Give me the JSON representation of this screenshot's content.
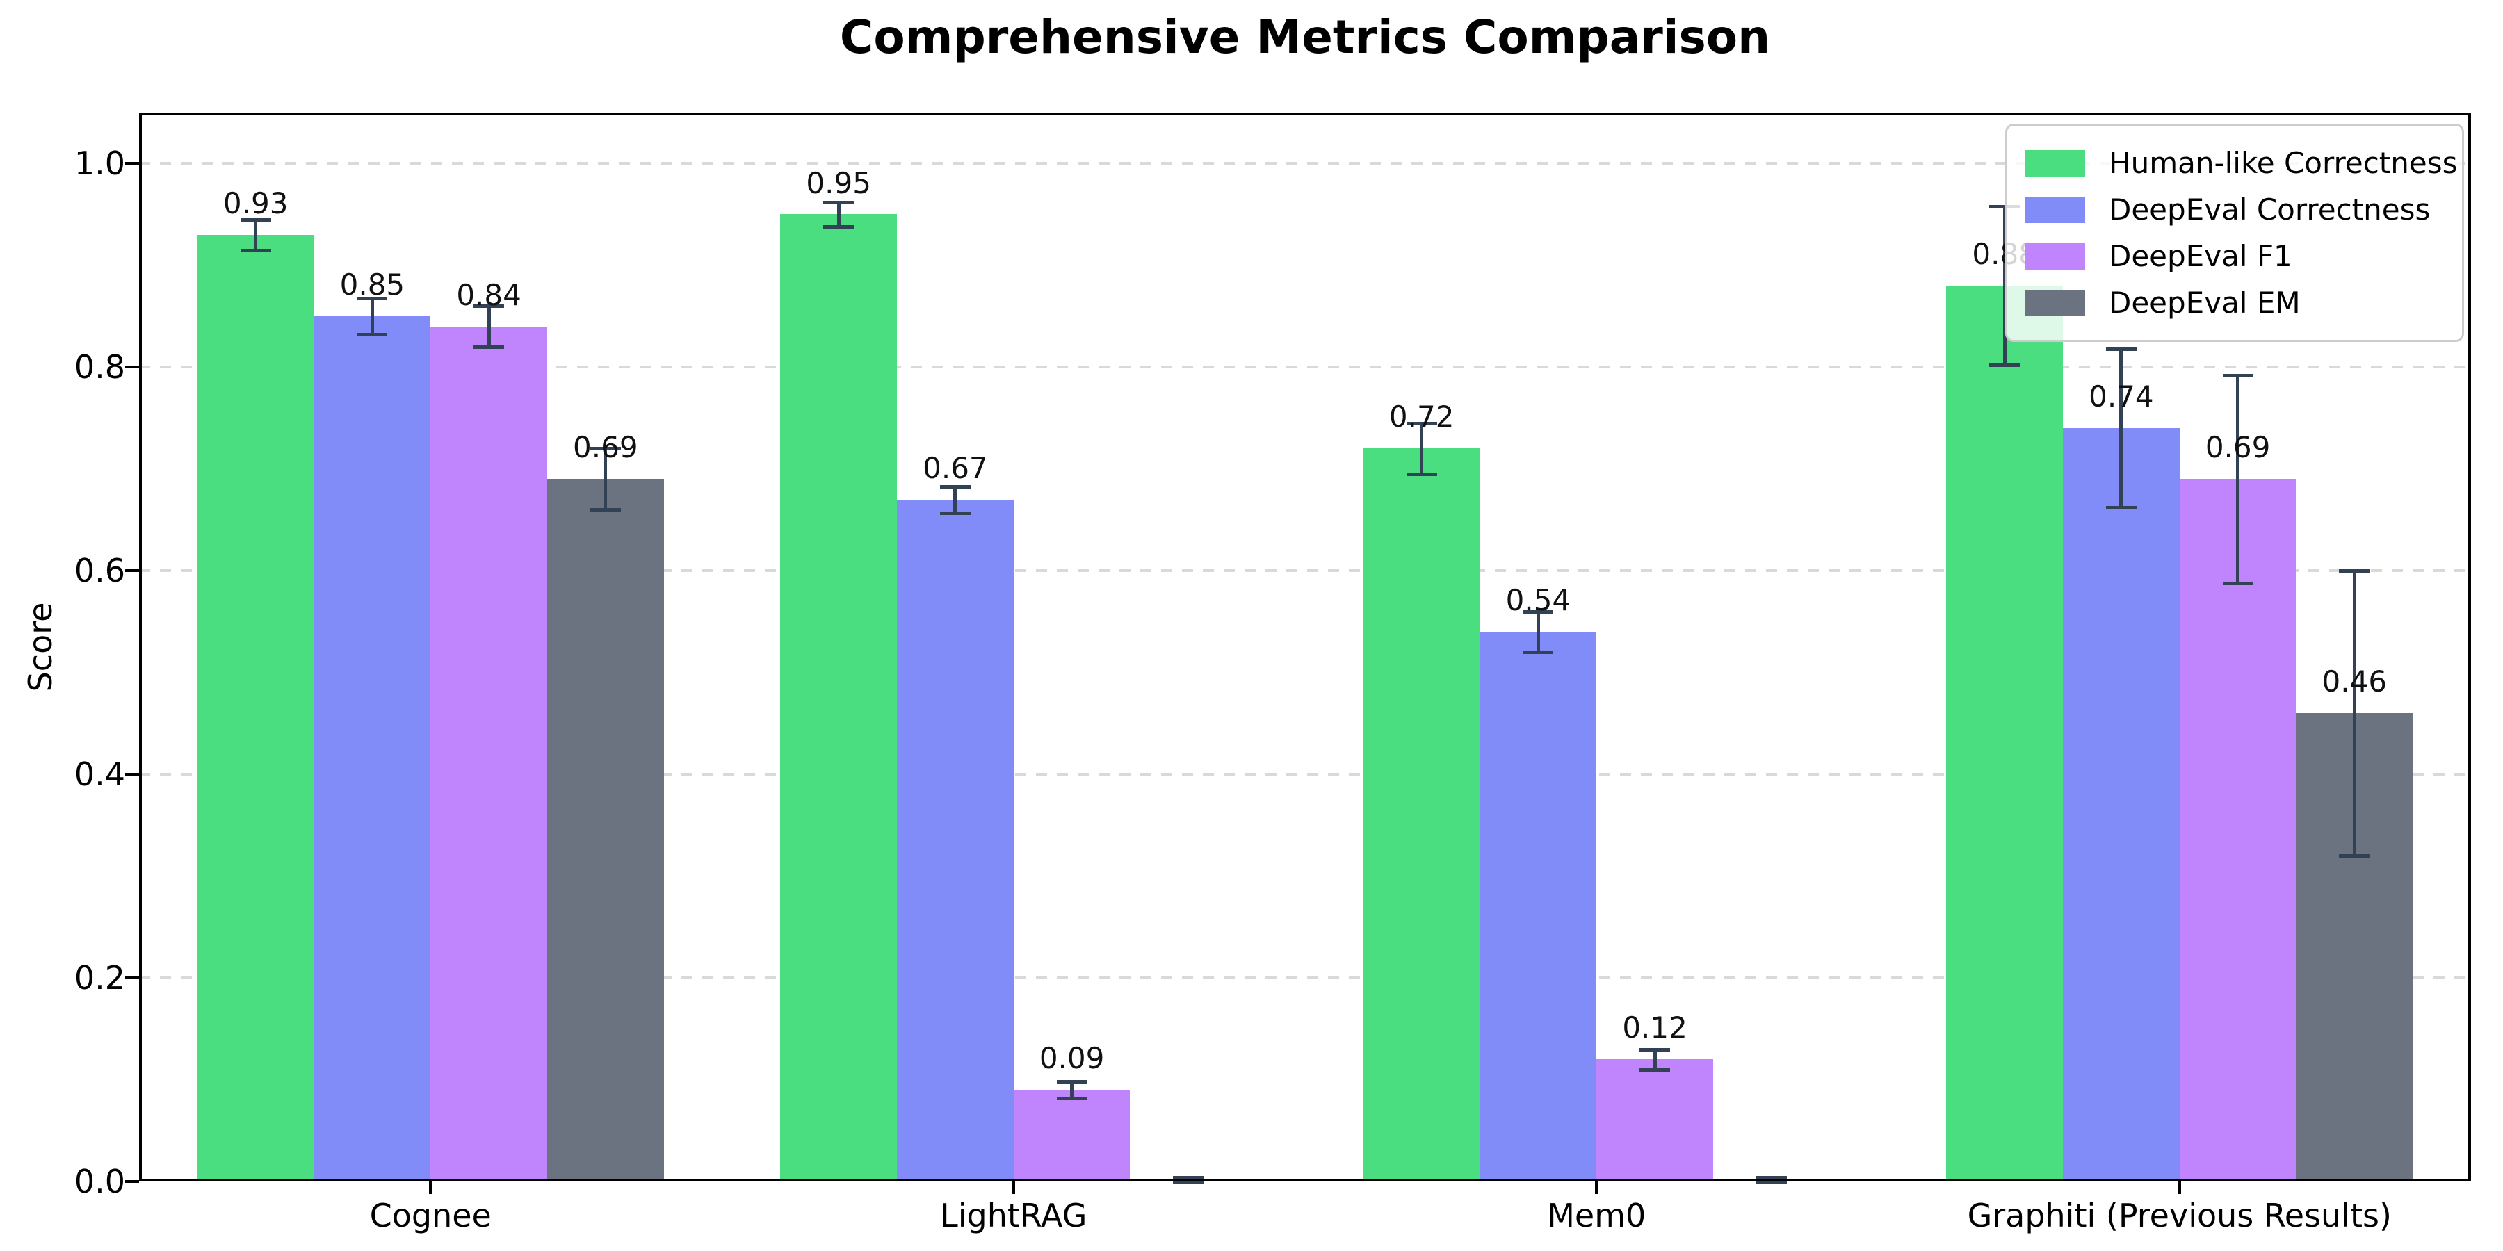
{
  "chart_data": {
    "type": "bar",
    "title": "Comprehensive Metrics Comparison",
    "ylabel": "Score",
    "xlabel": "",
    "categories": [
      "Cognee",
      "LightRAG",
      "Mem0",
      "Graphiti (Previous Results)"
    ],
    "series": [
      {
        "name": "Human-like Correctness",
        "color": "#4ade80",
        "values": [
          0.93,
          0.95,
          0.72,
          0.88
        ],
        "errors": [
          0.015,
          0.012,
          0.025,
          0.078
        ],
        "value_labels": [
          "0.93",
          "0.95",
          "0.72",
          "0.88"
        ]
      },
      {
        "name": "DeepEval Correctness",
        "color": "#818cf8",
        "values": [
          0.85,
          0.67,
          0.54,
          0.74
        ],
        "errors": [
          0.018,
          0.013,
          0.02,
          0.078
        ],
        "value_labels": [
          "0.85",
          "0.67",
          "0.54",
          "0.74"
        ]
      },
      {
        "name": "DeepEval F1",
        "color": "#c084fc",
        "values": [
          0.84,
          0.09,
          0.12,
          0.69
        ],
        "errors": [
          0.02,
          0.008,
          0.01,
          0.102
        ],
        "value_labels": [
          "0.84",
          "0.09",
          "0.12",
          "0.69"
        ]
      },
      {
        "name": "DeepEval EM",
        "color": "#6b7280",
        "values": [
          0.69,
          0.0,
          0.0,
          0.46
        ],
        "errors": [
          0.03,
          0.004,
          0.004,
          0.14
        ],
        "value_labels": [
          "0.69",
          "",
          "",
          "0.46"
        ]
      }
    ],
    "yticks": [
      "0.0",
      "0.2",
      "0.4",
      "0.6",
      "0.8",
      "1.0"
    ],
    "ylim": [
      0,
      1.05
    ],
    "bar_group_width": 0.8,
    "grid": {
      "axis": "y",
      "style": "dashed",
      "color": "#d9d9d9"
    },
    "legend_position": "upper right",
    "error_bar_color": "#334155",
    "spine_color": "#000000",
    "label_offset": 0.03
  }
}
